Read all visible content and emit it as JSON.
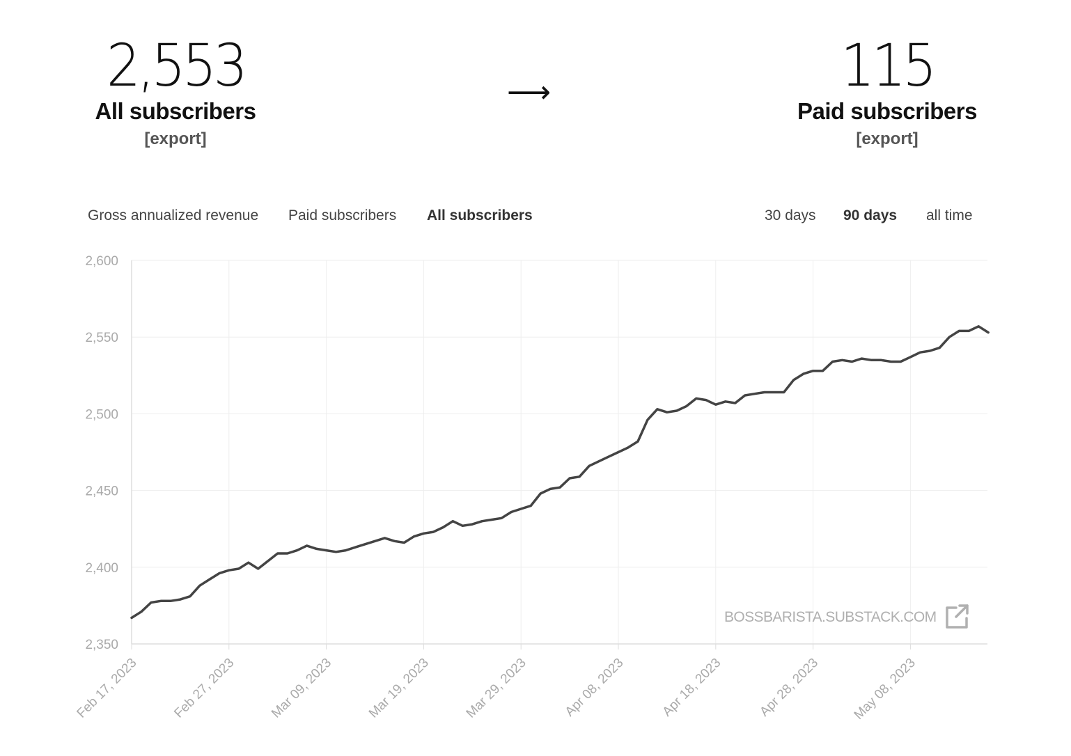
{
  "summary": {
    "all": {
      "number": "2,553",
      "label": "All subscribers",
      "export": "[export]"
    },
    "paid": {
      "number": "115",
      "label": "Paid subscribers",
      "export": "[export]"
    },
    "arrow": "⟶"
  },
  "tabs": {
    "metrics": [
      {
        "label": "Gross annualized revenue",
        "active": false
      },
      {
        "label": "Paid subscribers",
        "active": false
      },
      {
        "label": "All subscribers",
        "active": true
      }
    ],
    "ranges": [
      {
        "label": "30 days",
        "active": false
      },
      {
        "label": "90 days",
        "active": true
      },
      {
        "label": "all time",
        "active": false
      }
    ]
  },
  "watermark": {
    "text": "BOSSBARISTA.SUBSTACK.COM",
    "icon": "external-link-icon"
  },
  "colors": {
    "line": "#444444",
    "grid": "#eeeeee",
    "tick": "#aaaaaa",
    "watermark": "#b0b0b0"
  },
  "chart_data": {
    "type": "line",
    "title": "",
    "xlabel": "",
    "ylabel": "",
    "ylim": [
      2350,
      2600
    ],
    "yticks": [
      "2,350",
      "2,400",
      "2,450",
      "2,500",
      "2,550",
      "2,600"
    ],
    "xticks": [
      "Feb 17, 2023",
      "Feb 27, 2023",
      "Mar 09, 2023",
      "Mar 19, 2023",
      "Mar 29, 2023",
      "Apr 08, 2023",
      "Apr 18, 2023",
      "Apr 28, 2023",
      "May 08, 2023"
    ],
    "grid": true,
    "series": [
      {
        "values": [
          {
            "x": "2023-02-17",
            "y": 2367
          },
          {
            "x": "2023-02-18",
            "y": 2371
          },
          {
            "x": "2023-02-19",
            "y": 2377
          },
          {
            "x": "2023-02-20",
            "y": 2378
          },
          {
            "x": "2023-02-21",
            "y": 2378
          },
          {
            "x": "2023-02-22",
            "y": 2379
          },
          {
            "x": "2023-02-23",
            "y": 2381
          },
          {
            "x": "2023-02-24",
            "y": 2388
          },
          {
            "x": "2023-02-25",
            "y": 2392
          },
          {
            "x": "2023-02-26",
            "y": 2396
          },
          {
            "x": "2023-02-27",
            "y": 2398
          },
          {
            "x": "2023-02-28",
            "y": 2399
          },
          {
            "x": "2023-03-01",
            "y": 2403
          },
          {
            "x": "2023-03-02",
            "y": 2399
          },
          {
            "x": "2023-03-03",
            "y": 2404
          },
          {
            "x": "2023-03-04",
            "y": 2409
          },
          {
            "x": "2023-03-05",
            "y": 2409
          },
          {
            "x": "2023-03-06",
            "y": 2411
          },
          {
            "x": "2023-03-07",
            "y": 2414
          },
          {
            "x": "2023-03-08",
            "y": 2412
          },
          {
            "x": "2023-03-09",
            "y": 2411
          },
          {
            "x": "2023-03-10",
            "y": 2410
          },
          {
            "x": "2023-03-11",
            "y": 2411
          },
          {
            "x": "2023-03-12",
            "y": 2413
          },
          {
            "x": "2023-03-13",
            "y": 2415
          },
          {
            "x": "2023-03-14",
            "y": 2417
          },
          {
            "x": "2023-03-15",
            "y": 2419
          },
          {
            "x": "2023-03-16",
            "y": 2417
          },
          {
            "x": "2023-03-17",
            "y": 2416
          },
          {
            "x": "2023-03-18",
            "y": 2420
          },
          {
            "x": "2023-03-19",
            "y": 2422
          },
          {
            "x": "2023-03-20",
            "y": 2423
          },
          {
            "x": "2023-03-21",
            "y": 2426
          },
          {
            "x": "2023-03-22",
            "y": 2430
          },
          {
            "x": "2023-03-23",
            "y": 2427
          },
          {
            "x": "2023-03-24",
            "y": 2428
          },
          {
            "x": "2023-03-25",
            "y": 2430
          },
          {
            "x": "2023-03-26",
            "y": 2431
          },
          {
            "x": "2023-03-27",
            "y": 2432
          },
          {
            "x": "2023-03-28",
            "y": 2436
          },
          {
            "x": "2023-03-29",
            "y": 2438
          },
          {
            "x": "2023-03-30",
            "y": 2440
          },
          {
            "x": "2023-03-31",
            "y": 2448
          },
          {
            "x": "2023-04-01",
            "y": 2451
          },
          {
            "x": "2023-04-02",
            "y": 2452
          },
          {
            "x": "2023-04-03",
            "y": 2458
          },
          {
            "x": "2023-04-04",
            "y": 2459
          },
          {
            "x": "2023-04-05",
            "y": 2466
          },
          {
            "x": "2023-04-06",
            "y": 2469
          },
          {
            "x": "2023-04-07",
            "y": 2472
          },
          {
            "x": "2023-04-08",
            "y": 2475
          },
          {
            "x": "2023-04-09",
            "y": 2478
          },
          {
            "x": "2023-04-10",
            "y": 2482
          },
          {
            "x": "2023-04-11",
            "y": 2496
          },
          {
            "x": "2023-04-12",
            "y": 2503
          },
          {
            "x": "2023-04-13",
            "y": 2501
          },
          {
            "x": "2023-04-14",
            "y": 2502
          },
          {
            "x": "2023-04-15",
            "y": 2505
          },
          {
            "x": "2023-04-16",
            "y": 2510
          },
          {
            "x": "2023-04-17",
            "y": 2509
          },
          {
            "x": "2023-04-18",
            "y": 2506
          },
          {
            "x": "2023-04-19",
            "y": 2508
          },
          {
            "x": "2023-04-20",
            "y": 2507
          },
          {
            "x": "2023-04-21",
            "y": 2512
          },
          {
            "x": "2023-04-22",
            "y": 2513
          },
          {
            "x": "2023-04-23",
            "y": 2514
          },
          {
            "x": "2023-04-24",
            "y": 2514
          },
          {
            "x": "2023-04-25",
            "y": 2514
          },
          {
            "x": "2023-04-26",
            "y": 2522
          },
          {
            "x": "2023-04-27",
            "y": 2526
          },
          {
            "x": "2023-04-28",
            "y": 2528
          },
          {
            "x": "2023-04-29",
            "y": 2528
          },
          {
            "x": "2023-04-30",
            "y": 2534
          },
          {
            "x": "2023-05-01",
            "y": 2535
          },
          {
            "x": "2023-05-02",
            "y": 2534
          },
          {
            "x": "2023-05-03",
            "y": 2536
          },
          {
            "x": "2023-05-04",
            "y": 2535
          },
          {
            "x": "2023-05-05",
            "y": 2535
          },
          {
            "x": "2023-05-06",
            "y": 2534
          },
          {
            "x": "2023-05-07",
            "y": 2534
          },
          {
            "x": "2023-05-08",
            "y": 2537
          },
          {
            "x": "2023-05-09",
            "y": 2540
          },
          {
            "x": "2023-05-10",
            "y": 2541
          },
          {
            "x": "2023-05-11",
            "y": 2543
          },
          {
            "x": "2023-05-12",
            "y": 2550
          },
          {
            "x": "2023-05-13",
            "y": 2554
          },
          {
            "x": "2023-05-14",
            "y": 2554
          },
          {
            "x": "2023-05-15",
            "y": 2557
          },
          {
            "x": "2023-05-16",
            "y": 2553
          }
        ]
      }
    ]
  }
}
